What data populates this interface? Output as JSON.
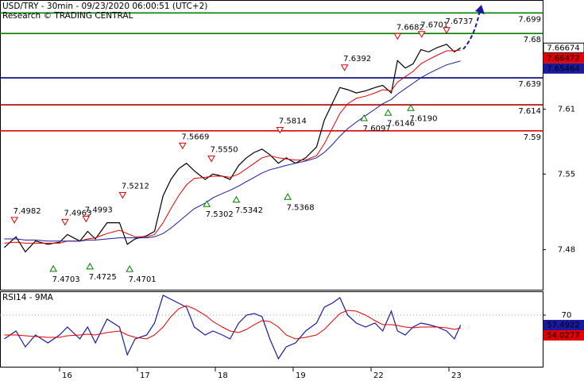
{
  "chart_data": [
    {
      "type": "line",
      "title": "USD/TRY - 30min - 09/23/2020 06:00:51 (UTC+2)",
      "subtitle": "Research © TRADING CENTRAL",
      "xlim": [
        0.235,
        7.204
      ],
      "x": [
        0.29,
        0.44,
        0.56,
        0.69,
        0.85,
        1.0,
        1.1,
        1.26,
        1.36,
        1.46,
        1.61,
        1.77,
        1.87,
        1.97,
        2.12,
        2.22,
        2.33,
        2.43,
        2.53,
        2.63,
        2.73,
        2.87,
        2.97,
        3.09,
        3.19,
        3.3,
        3.4,
        3.5,
        3.6,
        3.7,
        3.81,
        3.91,
        4.03,
        4.16,
        4.3,
        4.4,
        4.5,
        4.6,
        4.7,
        4.81,
        4.93,
        5.05,
        5.15,
        5.26,
        5.34,
        5.44,
        5.54,
        5.64,
        5.74,
        5.85,
        5.97,
        6.07,
        6.15
      ],
      "series": [
        {
          "color": "#000000",
          "values": [
            7.482,
            7.492,
            7.478,
            7.488,
            7.485,
            7.487,
            7.494,
            7.488,
            7.497,
            7.49,
            7.505,
            7.505,
            7.485,
            7.49,
            7.493,
            7.497,
            7.53,
            7.545,
            7.555,
            7.56,
            7.553,
            7.545,
            7.55,
            7.548,
            7.545,
            7.558,
            7.565,
            7.57,
            7.573,
            7.568,
            7.56,
            7.565,
            7.56,
            7.565,
            7.575,
            7.6,
            7.615,
            7.63,
            7.628,
            7.625,
            7.627,
            7.63,
            7.632,
            7.625,
            7.655,
            7.648,
            7.652,
            7.665,
            7.663,
            7.667,
            7.67,
            7.663,
            7.66674
          ]
        },
        {
          "color": "#e00000",
          "values": [
            7.486,
            7.487,
            7.486,
            7.486,
            7.486,
            7.486,
            7.488,
            7.488,
            7.49,
            7.491,
            7.495,
            7.498,
            7.495,
            7.492,
            7.492,
            7.494,
            7.505,
            7.518,
            7.53,
            7.54,
            7.546,
            7.547,
            7.548,
            7.548,
            7.547,
            7.55,
            7.555,
            7.56,
            7.565,
            7.567,
            7.565,
            7.564,
            7.563,
            7.563,
            7.567,
            7.578,
            7.592,
            7.606,
            7.615,
            7.62,
            7.622,
            7.625,
            7.628,
            7.627,
            7.635,
            7.64,
            7.645,
            7.652,
            7.656,
            7.66,
            7.664,
            7.664,
            7.66472
          ]
        },
        {
          "color": "#1a1aa0",
          "values": [
            7.49,
            7.49,
            7.489,
            7.489,
            7.488,
            7.488,
            7.488,
            7.488,
            7.489,
            7.489,
            7.49,
            7.491,
            7.491,
            7.491,
            7.491,
            7.492,
            7.495,
            7.5,
            7.506,
            7.512,
            7.518,
            7.523,
            7.528,
            7.532,
            7.535,
            7.539,
            7.543,
            7.547,
            7.551,
            7.554,
            7.556,
            7.558,
            7.56,
            7.562,
            7.565,
            7.57,
            7.577,
            7.585,
            7.592,
            7.598,
            7.604,
            7.61,
            7.615,
            7.619,
            7.624,
            7.629,
            7.634,
            7.639,
            7.643,
            7.647,
            7.651,
            7.653,
            7.65464
          ]
        }
      ],
      "ylim": [
        7.443,
        7.711
      ],
      "yticks": [
        7.48,
        7.55,
        7.61
      ],
      "levels": [
        {
          "value": 7.699,
          "color": "#008000"
        },
        {
          "value": 7.68,
          "color": "#008000"
        },
        {
          "value": 7.639,
          "color": "#000080"
        },
        {
          "value": 7.614,
          "color": "#b00000"
        },
        {
          "value": 7.59,
          "color": "#e00000"
        }
      ],
      "highs": [
        {
          "x": 0.42,
          "value": 7.4982
        },
        {
          "x": 1.07,
          "value": 7.4963
        },
        {
          "x": 1.34,
          "value": 7.4993
        },
        {
          "x": 1.81,
          "value": 7.5212
        },
        {
          "x": 2.58,
          "value": 7.5669
        },
        {
          "x": 2.95,
          "value": 7.555,
          "label": "7.5550"
        },
        {
          "x": 3.83,
          "value": 7.5814
        },
        {
          "x": 4.66,
          "value": 7.6392
        },
        {
          "x": 5.34,
          "value": 7.6682
        },
        {
          "x": 5.65,
          "value": 7.6701
        },
        {
          "x": 5.97,
          "value": 7.6737
        }
      ],
      "lows": [
        {
          "x": 0.92,
          "value": 7.4703
        },
        {
          "x": 1.39,
          "value": 7.4725
        },
        {
          "x": 1.9,
          "value": 7.4701
        },
        {
          "x": 2.89,
          "value": 7.5302
        },
        {
          "x": 3.27,
          "value": 7.5342
        },
        {
          "x": 3.93,
          "value": 7.5368
        },
        {
          "x": 4.91,
          "value": 7.6097
        },
        {
          "x": 5.22,
          "value": 7.6146
        },
        {
          "x": 5.51,
          "value": 7.619,
          "label": "7.6190"
        }
      ],
      "last_values": [
        {
          "value": 7.66674,
          "color": "#ffffff",
          "text_color": "#000000"
        },
        {
          "value": 7.66472,
          "color": "#e00000",
          "text_color": "#ffffff"
        },
        {
          "value": 7.65464,
          "color": "#1a1aa0",
          "text_color": "#ffffff"
        }
      ]
    },
    {
      "type": "line",
      "title": "RSI14 - 9MA",
      "xlim": [
        0.235,
        7.204
      ],
      "x": [
        0.29,
        0.44,
        0.56,
        0.69,
        0.85,
        1.0,
        1.1,
        1.26,
        1.36,
        1.46,
        1.61,
        1.77,
        1.87,
        1.97,
        2.12,
        2.22,
        2.33,
        2.43,
        2.53,
        2.63,
        2.73,
        2.87,
        2.97,
        3.09,
        3.19,
        3.3,
        3.4,
        3.5,
        3.6,
        3.7,
        3.81,
        3.91,
        4.03,
        4.16,
        4.3,
        4.4,
        4.5,
        4.6,
        4.7,
        4.81,
        4.93,
        5.05,
        5.15,
        5.26,
        5.34,
        5.44,
        5.54,
        5.64,
        5.74,
        5.85,
        5.97,
        6.07,
        6.15
      ],
      "xticks": [
        {
          "value": 1,
          "label": "16"
        },
        {
          "value": 2,
          "label": "17"
        },
        {
          "value": 3,
          "label": "18"
        },
        {
          "value": 4,
          "label": "19"
        },
        {
          "value": 5,
          "label": "22"
        },
        {
          "value": 6,
          "label": "23"
        }
      ],
      "series": [
        {
          "color": "#1a1aa0",
          "values": [
            40,
            50,
            30,
            45,
            35,
            45,
            55,
            40,
            55,
            35,
            65,
            55,
            20,
            40,
            45,
            60,
            95,
            90,
            85,
            80,
            55,
            45,
            50,
            45,
            40,
            60,
            70,
            72,
            68,
            40,
            15,
            30,
            35,
            50,
            60,
            80,
            85,
            92,
            70,
            60,
            55,
            60,
            50,
            75,
            50,
            45,
            55,
            60,
            58,
            55,
            50,
            40,
            57.4922
          ]
        },
        {
          "color": "#e00000",
          "values": [
            45,
            45,
            44,
            43,
            42,
            42,
            44,
            45,
            46,
            45,
            48,
            50,
            45,
            42,
            40,
            45,
            55,
            68,
            78,
            82,
            78,
            70,
            62,
            55,
            50,
            48,
            52,
            58,
            63,
            62,
            55,
            45,
            40,
            42,
            45,
            52,
            62,
            72,
            76,
            75,
            70,
            63,
            58,
            58,
            57,
            55,
            54,
            55,
            55,
            55,
            54,
            52,
            54.0277
          ]
        }
      ],
      "ylim": [
        5,
        100
      ],
      "yticks": [
        70
      ],
      "last_values": [
        {
          "value": 57.4922,
          "color": "#1a1aa0",
          "text_color": "#ffffff"
        },
        {
          "value": 54.0277,
          "color": "#e00000",
          "text_color": "#ffffff"
        }
      ]
    }
  ]
}
